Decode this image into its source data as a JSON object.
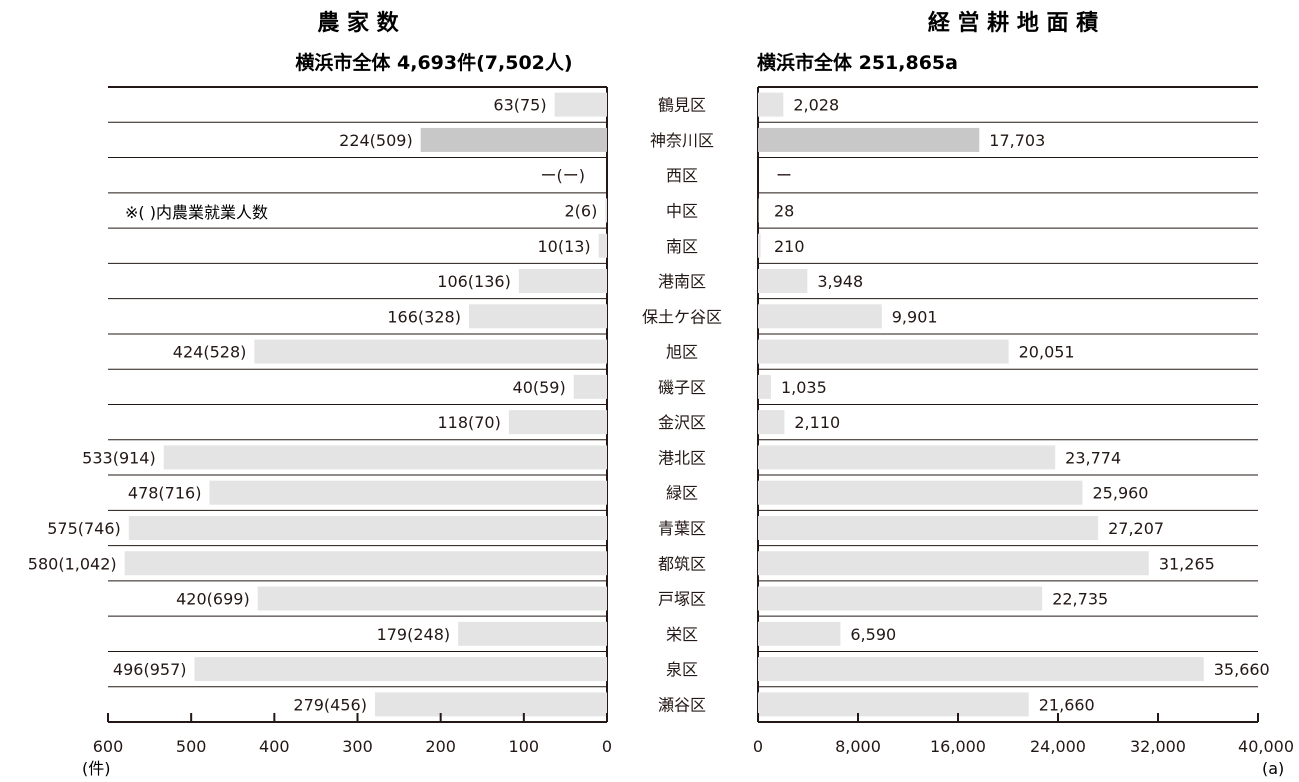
{
  "colors": {
    "bar_light": "#e4e4e4",
    "bar_dark": "#c8c8c8",
    "ink": "#231815",
    "background": "#ffffff"
  },
  "chart_data": [
    {
      "type": "bar",
      "orientation": "horizontal",
      "direction": "right-to-left",
      "title": "農 家 数",
      "subtitle": "横浜市全体 4,693件(7,502人)",
      "note": "※(  )内農業就業人数",
      "xlabel": "",
      "unit_label": "(件)",
      "xlim": [
        0,
        600
      ],
      "ticks": [
        "600",
        "500",
        "400",
        "300",
        "200",
        "100",
        "0"
      ],
      "categories": [
        "鶴見区",
        "神奈川区",
        "西区",
        "中区",
        "南区",
        "港南区",
        "保土ケ谷区",
        "旭区",
        "磯子区",
        "金沢区",
        "港北区",
        "緑区",
        "青葉区",
        "都筑区",
        "戸塚区",
        "栄区",
        "泉区",
        "瀬谷区"
      ],
      "values": [
        63,
        224,
        null,
        2,
        10,
        106,
        166,
        424,
        40,
        118,
        533,
        478,
        575,
        580,
        420,
        179,
        496,
        279
      ],
      "workers": [
        75,
        509,
        null,
        6,
        13,
        136,
        328,
        528,
        59,
        70,
        914,
        716,
        746,
        1042,
        699,
        248,
        957,
        456
      ],
      "labels": [
        "63(75)",
        "224(509)",
        "ー(ー)",
        "2(6)",
        "10(13)",
        "106(136)",
        "166(328)",
        "424(528)",
        "40(59)",
        "118(70)",
        "533(914)",
        "478(716)",
        "575(746)",
        "580(1,042)",
        "420(699)",
        "179(248)",
        "496(957)",
        "279(456)"
      ],
      "highlight": "神奈川区",
      "grid": false
    },
    {
      "type": "bar",
      "orientation": "horizontal",
      "title": "経 営 耕 地 面 積",
      "subtitle": "横浜市全体 251,865a",
      "xlabel": "",
      "unit_label": "(a)",
      "xlim": [
        0,
        40000
      ],
      "ticks": [
        "0",
        "8,000",
        "16,000",
        "24,000",
        "32,000",
        "40,000"
      ],
      "categories": [
        "鶴見区",
        "神奈川区",
        "西区",
        "中区",
        "南区",
        "港南区",
        "保土ケ谷区",
        "旭区",
        "磯子区",
        "金沢区",
        "港北区",
        "緑区",
        "青葉区",
        "都筑区",
        "戸塚区",
        "栄区",
        "泉区",
        "瀬谷区"
      ],
      "values": [
        2028,
        17703,
        null,
        28,
        210,
        3948,
        9901,
        20051,
        1035,
        2110,
        23774,
        25960,
        27207,
        31265,
        22735,
        6590,
        35660,
        21660
      ],
      "labels": [
        "2,028",
        "17,703",
        "ー",
        "28",
        "210",
        "3,948",
        "9,901",
        "20,051",
        "1,035",
        "2,110",
        "23,774",
        "25,960",
        "27,207",
        "31,265",
        "22,735",
        "6,590",
        "35,660",
        "21,660"
      ],
      "highlight": "神奈川区",
      "grid": false
    }
  ]
}
